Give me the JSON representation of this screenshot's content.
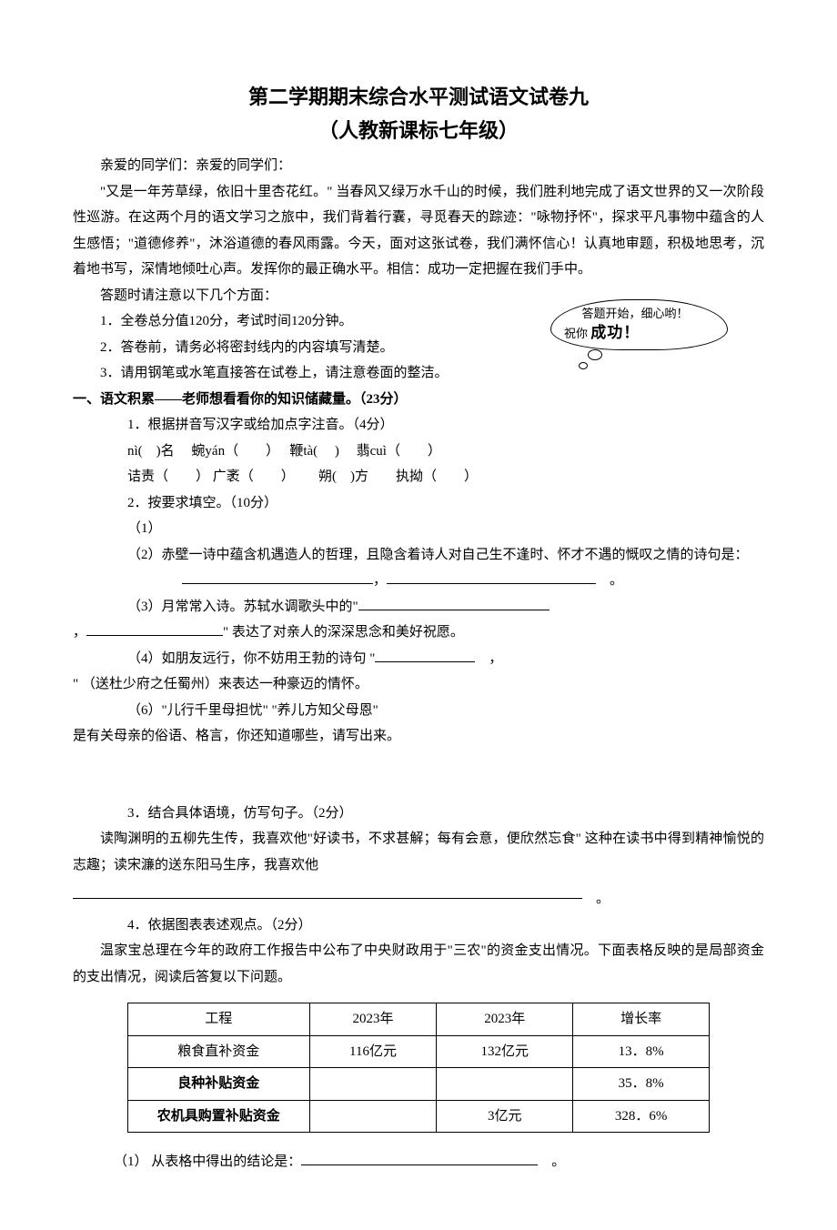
{
  "title": "第二学期期末综合水平测试语文试卷九",
  "subtitle": "（人教新课标七年级）",
  "greeting": "亲爱的同学们：亲爱的同学们：",
  "intro": "\"又是一年芳草绿，依旧十里杏花红。\" 当春风又绿万水千山的时候，我们胜利地完成了语文世界的又一次阶段性巡游。在这两个月的语文学习之旅中，我们背着行囊，寻觅春天的踪迹：\"咏物抒怀\"，探求平凡事物中蕴含的人生感悟；\"道德修养\"，沐浴道德的春风雨露。今天，面对这张试卷，我们满怀信心！认真地审题，积极地思考，沉着地书写，深情地倾吐心声。发挥你的最正确水平。相信：成功一定把握在我们手中。",
  "notes_head": "答题时请注意以下几个方面：",
  "notes": [
    "1．全卷总分值120分，考试时间120分钟。",
    "2．答卷前，请务必将密封线内的内容填写清楚。",
    "3．请用钢笔或水笔直接答在试卷上，请注意卷面的整洁。"
  ],
  "bubble_l1": "答题开始，细心哟！",
  "bubble_l2a": "祝你",
  "bubble_l2b": "成功！",
  "section1": "一、语文积累——老师想看看你的知识储藏量。（23分）",
  "q1": "1．根据拼音写汉字或给加点字注音。（4分）",
  "q1_line1_a": "nì(　)名　  蜿yán（　　）　   鞭tà(　 )　   翡cuì（　　）",
  "q1_line2_a": "诘责（　　） 广袤（　　）　　  朔(　)方　　执拗（　　）",
  "q2": "2．按要求填空。（10分）",
  "q2_1": "（1）",
  "q2_2a": "（2）赤壁一诗中蕴含机遇造人的哲理，且隐含着诗人对自己生不逢时、怀才不遇的慨叹之情的诗句是：",
  "q2_3a": "（3）月常常入诗。苏轼水调歌头中的\"",
  "q2_3b": "\" 表达了对亲人的深深思念和美好祝愿。",
  "q2_4a": "（4）如朋友远行，你不妨用王勃的诗句 \"",
  "q2_4b": "\" （送杜少府之任蜀州）来表达一种豪迈的情怀。",
  "q2_6": "（6）\"儿行千里母担忧\" \"养儿方知父母恩\"",
  "q2_6b": "是有关母亲的俗语、格言，你还知道哪些，请写出来。",
  "q3": "3．结合具体语境，仿写句子。（2分）",
  "q3_body": "读陶渊明的五柳先生传，我喜欢他\"好读书，不求甚解；每有会意，便欣然忘食\" 这种在读书中得到精神愉悦的志趣；读宋濂的送东阳马生序，我喜欢他",
  "q4": "4．依据图表表述观点。（2分）",
  "q4_body": "温家宝总理在今年的政府工作报告中公布了中央财政用于\"三农\"的资金支出情况。下面表格反映的是局部资金的支出情况，阅读后答复以下问题。",
  "q4_q1": "（1） 从表格中得出的结论是：",
  "table": {
    "columns": [
      "工程",
      "2023年",
      "2023年",
      "增长率"
    ],
    "rows": [
      [
        "粮食直补资金",
        "116亿元",
        "132亿元",
        "13．8%"
      ],
      [
        "良种补贴资金",
        "",
        "",
        "35．8%"
      ],
      [
        "农机具购置补贴资金",
        "",
        "3亿元",
        "328．6%"
      ]
    ],
    "bold_rows": [
      1,
      2
    ],
    "col_widths": [
      "200px",
      "140px",
      "150px",
      "150px"
    ]
  }
}
